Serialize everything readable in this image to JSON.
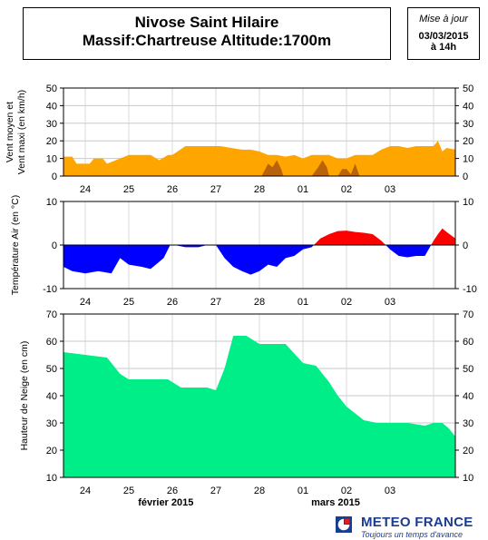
{
  "header": {
    "title_line1": "Nivose Saint Hilaire",
    "title_line2": "Massif:Chartreuse Altitude:1700m",
    "update_label": "Mise à jour",
    "update_date": "03/03/2015",
    "update_time": "à 14h"
  },
  "footer": {
    "month_feb": "février 2015",
    "month_mar": "mars 2015",
    "brand": "METEO FRANCE",
    "tagline": "Toujours un temps d'avance"
  },
  "chart_data": [
    {
      "type": "area",
      "id": "wind",
      "ylabel": "Vent moyen et\nVent maxi (en km/h)",
      "ylim": [
        0,
        50
      ],
      "yticks": [
        0,
        10,
        20,
        30,
        40,
        50
      ],
      "xlim": [
        -0.5,
        8.5
      ],
      "xtick_labels": [
        "24",
        "25",
        "26",
        "27",
        "28",
        "01",
        "02",
        "03"
      ],
      "grid": true,
      "colors": {
        "mean": "#ffa500",
        "max": "#b8620a"
      },
      "series": [
        {
          "role": "mean",
          "x": [
            -0.5,
            -0.3,
            -0.2,
            0.1,
            0.2,
            0.4,
            0.5,
            0.8,
            1.0,
            1.5,
            1.7,
            1.9,
            2.0,
            2.3,
            2.4,
            2.8,
            3.0,
            3.1,
            3.6,
            3.8,
            4.0,
            4.2,
            4.4,
            4.6,
            4.8,
            5.0,
            5.2,
            5.4,
            5.6,
            5.8,
            6.0,
            6.2,
            6.4,
            6.6,
            6.8,
            7.0,
            7.2,
            7.4,
            7.6,
            7.8,
            8.0,
            8.1,
            8.2,
            8.3,
            8.5
          ],
          "y": [
            11,
            11,
            7,
            7,
            10,
            10,
            7,
            10,
            12,
            12,
            9,
            12,
            12,
            17,
            17,
            17,
            17,
            17,
            15,
            15,
            14,
            12,
            12,
            11,
            12,
            10,
            12,
            12,
            12,
            10,
            10,
            12,
            12,
            12,
            15,
            17,
            17,
            16,
            17,
            17,
            17,
            20,
            14,
            16,
            15
          ]
        },
        {
          "role": "max",
          "x": [
            4.05,
            4.2,
            4.3,
            4.4,
            4.5,
            4.55,
            5.2,
            5.35,
            5.45,
            5.55,
            5.6,
            5.8,
            5.9,
            6.0,
            6.1,
            6.2,
            6.3
          ],
          "y": [
            0,
            7,
            5,
            9,
            4,
            0,
            0,
            5,
            9,
            5,
            0,
            0,
            4,
            4,
            1,
            7,
            0
          ]
        }
      ]
    },
    {
      "type": "area",
      "id": "temperature",
      "ylabel": "Température Air (en °C)",
      "ylim": [
        -10,
        10
      ],
      "yticks": [
        -10,
        0,
        10
      ],
      "xlim": [
        -0.5,
        8.5
      ],
      "xtick_labels": [
        "24",
        "25",
        "26",
        "27",
        "28",
        "01",
        "02",
        "03"
      ],
      "grid": true,
      "colors": {
        "positive": "#ff0000",
        "negative": "#0000ff"
      },
      "x": [
        -0.5,
        -0.3,
        0.0,
        0.3,
        0.6,
        0.8,
        1.0,
        1.3,
        1.5,
        1.8,
        1.95,
        2.05,
        2.3,
        2.6,
        2.8,
        3.0,
        3.2,
        3.4,
        3.6,
        3.8,
        4.0,
        4.2,
        4.4,
        4.6,
        4.8,
        5.0,
        5.2,
        5.4,
        5.6,
        5.8,
        6.0,
        6.2,
        6.4,
        6.6,
        6.8,
        7.0,
        7.2,
        7.4,
        7.6,
        7.8,
        8.0,
        8.1,
        8.2,
        8.3,
        8.5
      ],
      "y": [
        -5,
        -6,
        -6.5,
        -6,
        -6.5,
        -3,
        -4.5,
        -5,
        -5.5,
        -3,
        0,
        0,
        -0.5,
        -0.5,
        0,
        0,
        -3,
        -5,
        -6,
        -6.8,
        -6,
        -4.5,
        -5,
        -3,
        -2.5,
        -1,
        -0.5,
        1.5,
        2.5,
        3.2,
        3.3,
        3,
        2.8,
        2.5,
        1,
        -1,
        -2.5,
        -2.8,
        -2.5,
        -2.5,
        1,
        2.5,
        3.8,
        3,
        1.5
      ]
    },
    {
      "type": "area",
      "id": "snow",
      "ylabel": "Hauteur de Neige (en cm)",
      "ylim": [
        10,
        70
      ],
      "yticks": [
        10,
        20,
        30,
        40,
        50,
        60,
        70
      ],
      "xlim": [
        -0.5,
        8.5
      ],
      "xtick_labels": [
        "24",
        "25",
        "26",
        "27",
        "28",
        "01",
        "02",
        "03"
      ],
      "grid": true,
      "colors": {
        "fill": "#00ee88"
      },
      "x": [
        -0.5,
        0.0,
        0.5,
        0.8,
        1.0,
        1.4,
        1.9,
        2.2,
        2.5,
        2.8,
        3.0,
        3.2,
        3.4,
        3.7,
        4.0,
        4.3,
        4.6,
        5.0,
        5.3,
        5.6,
        5.8,
        6.0,
        6.4,
        6.7,
        7.0,
        7.4,
        7.8,
        8.0,
        8.2,
        8.35,
        8.5
      ],
      "y": [
        56,
        55,
        54,
        48,
        46,
        46,
        46,
        43,
        43,
        43,
        42,
        50,
        62,
        62,
        59,
        59,
        59,
        52,
        51,
        45,
        40,
        36,
        31,
        30,
        30,
        30,
        29,
        30,
        30,
        28,
        25
      ]
    }
  ]
}
